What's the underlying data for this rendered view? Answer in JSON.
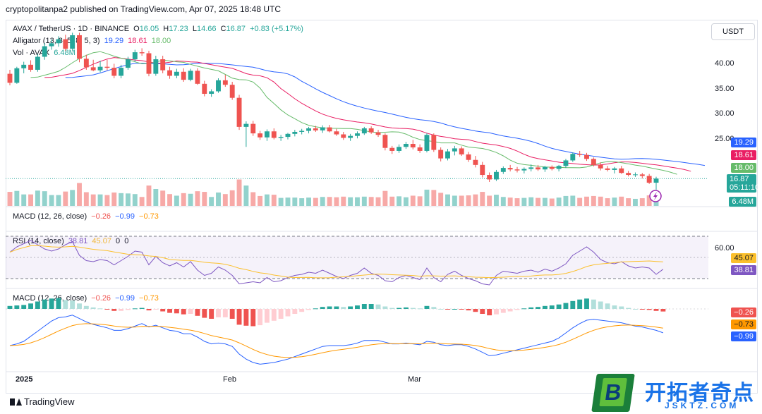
{
  "header": {
    "publisher": "cryptopolitanpa2 published on TradingView.com, Apr 07, 2025 18:48 UTC"
  },
  "currency_button": "USDT",
  "legend": {
    "symbol": "AVAX / TetherUS · 1D · BINANCE",
    "open_label": "O",
    "open": "16.05",
    "high_label": "H",
    "high": "17.23",
    "low_label": "L",
    "low": "14.66",
    "close_label": "C",
    "close": "16.87",
    "change": "+0.83 (+5.17%)",
    "alligator_label": "Alligator (13, 8, 5, 8, 5, 3)",
    "alligator_jaw": "19.29",
    "alligator_teeth": "18.61",
    "alligator_lips": "18.00",
    "volume_label": "Vol · AVAX",
    "volume_value": "6.48M",
    "macd1_label": "MACD (12, 26, close)",
    "macd1_hist": "−0.26",
    "macd1_macd": "−0.99",
    "macd1_signal": "−0.73",
    "rsi_label": "RSI (14, close)",
    "rsi_value": "38.81",
    "rsi_ma": "45.07",
    "rsi_extra1": "0",
    "rsi_extra2": "0",
    "macd2_label": "MACD (12, 26, close)",
    "macd2_hist": "−0.26",
    "macd2_macd": "−0.99",
    "macd2_signal": "−0.73"
  },
  "tags": {
    "jaw": "19.29",
    "teeth": "18.61",
    "lips": "18.00",
    "price": "16.87",
    "countdown": "05:11:10",
    "volume": "6.48M",
    "rsi_ma": "45.07",
    "rsi": "38.81",
    "macd_hist": "−0.26",
    "macd_signal": "−0.73",
    "macd": "−0.99"
  },
  "brand": "TradingView",
  "watermark": {
    "letter": "B",
    "cn": "开拓者奇点",
    "url": "JSKTZ.COM"
  },
  "colors": {
    "up": "#26a69a",
    "down": "#ef5350",
    "jaw": "#2962ff",
    "teeth": "#e91e63",
    "lips": "#66bb6a",
    "rsi": "#7e57c2",
    "rsi_ma": "#fbc02d",
    "macd": "#2962ff",
    "signal": "#ff9800"
  },
  "chart_data": [
    {
      "type": "candlestick",
      "title": "AVAX / TetherUS · 1D · BINANCE",
      "x_tick_labels": [
        "2025",
        "Feb",
        "Mar"
      ],
      "y_tick_labels": [
        "40.00",
        "35.00",
        "30.00",
        "25.00"
      ],
      "ylim": [
        14,
        47
      ],
      "candles": [
        [
          37.8,
          38.6,
          35.5,
          36.0
        ],
        [
          36.0,
          39.2,
          35.8,
          38.9
        ],
        [
          38.9,
          40.2,
          37.9,
          39.6
        ],
        [
          39.6,
          40.5,
          38.2,
          38.6
        ],
        [
          38.6,
          41.7,
          38.2,
          41.2
        ],
        [
          41.2,
          43.9,
          40.6,
          43.3
        ],
        [
          43.3,
          44.7,
          42.6,
          43.9
        ],
        [
          43.9,
          45.3,
          43.2,
          44.7
        ],
        [
          44.7,
          45.6,
          42.4,
          42.8
        ],
        [
          42.8,
          46.0,
          42.3,
          45.5
        ],
        [
          45.5,
          46.0,
          40.1,
          40.8
        ],
        [
          40.8,
          41.6,
          38.6,
          39.1
        ],
        [
          39.1,
          40.6,
          38.3,
          38.5
        ],
        [
          38.5,
          40.4,
          38.1,
          39.2
        ],
        [
          39.2,
          40.6,
          38.5,
          39.0
        ],
        [
          39.0,
          39.8,
          36.9,
          37.4
        ],
        [
          37.4,
          39.6,
          36.9,
          39.0
        ],
        [
          39.0,
          41.2,
          38.6,
          40.7
        ],
        [
          40.7,
          42.6,
          40.2,
          42.1
        ],
        [
          42.1,
          42.9,
          41.4,
          41.9
        ],
        [
          41.9,
          42.4,
          37.3,
          37.8
        ],
        [
          37.8,
          41.4,
          37.4,
          40.7
        ],
        [
          40.7,
          41.4,
          37.9,
          38.5
        ],
        [
          38.5,
          39.2,
          36.8,
          37.4
        ],
        [
          37.4,
          38.8,
          36.9,
          38.2
        ],
        [
          38.2,
          38.9,
          36.2,
          36.6
        ],
        [
          36.6,
          38.8,
          36.3,
          38.4
        ],
        [
          38.4,
          38.9,
          35.6,
          35.8
        ],
        [
          35.8,
          36.4,
          33.3,
          33.8
        ],
        [
          33.8,
          34.7,
          33.2,
          34.3
        ],
        [
          34.3,
          36.9,
          34.0,
          36.5
        ],
        [
          36.5,
          37.6,
          35.2,
          35.6
        ],
        [
          35.6,
          36.2,
          32.6,
          33.0
        ],
        [
          33.0,
          33.6,
          26.6,
          27.2
        ],
        [
          27.2,
          28.3,
          23.2,
          27.8
        ],
        [
          27.8,
          28.4,
          25.4,
          25.9
        ],
        [
          25.9,
          26.4,
          24.6,
          25.1
        ],
        [
          25.1,
          26.7,
          24.4,
          26.3
        ],
        [
          26.3,
          26.9,
          24.7,
          25.0
        ],
        [
          25.0,
          25.6,
          24.4,
          25.2
        ],
        [
          25.2,
          26.0,
          24.7,
          25.8
        ],
        [
          25.8,
          26.6,
          25.3,
          26.2
        ],
        [
          26.2,
          26.8,
          25.7,
          26.4
        ],
        [
          26.4,
          27.2,
          25.9,
          26.9
        ],
        [
          26.9,
          27.4,
          26.2,
          26.5
        ],
        [
          26.5,
          27.5,
          26.0,
          27.1
        ],
        [
          27.1,
          27.6,
          26.1,
          26.3
        ],
        [
          26.3,
          26.8,
          25.4,
          25.7
        ],
        [
          25.7,
          26.2,
          24.6,
          25.0
        ],
        [
          25.0,
          25.8,
          24.4,
          25.4
        ],
        [
          25.4,
          26.3,
          24.9,
          25.9
        ],
        [
          25.9,
          27.2,
          25.6,
          26.9
        ],
        [
          26.9,
          27.3,
          25.8,
          26.1
        ],
        [
          26.1,
          26.6,
          25.2,
          25.6
        ],
        [
          25.6,
          25.9,
          22.5,
          23.0
        ],
        [
          23.0,
          23.4,
          21.8,
          22.4
        ],
        [
          22.4,
          23.7,
          22.0,
          23.2
        ],
        [
          23.2,
          24.2,
          22.8,
          23.8
        ],
        [
          23.8,
          24.6,
          22.7,
          23.1
        ],
        [
          23.1,
          23.7,
          22.0,
          22.4
        ],
        [
          22.4,
          25.9,
          22.1,
          25.6
        ],
        [
          25.6,
          25.9,
          22.2,
          22.6
        ],
        [
          22.6,
          23.1,
          20.3,
          20.9
        ],
        [
          20.9,
          22.8,
          20.5,
          22.3
        ],
        [
          22.3,
          23.4,
          21.5,
          22.9
        ],
        [
          22.9,
          23.3,
          21.4,
          21.7
        ],
        [
          21.7,
          22.2,
          20.2,
          20.6
        ],
        [
          20.6,
          21.4,
          19.1,
          19.6
        ],
        [
          19.6,
          20.2,
          17.1,
          17.6
        ],
        [
          17.6,
          18.1,
          16.2,
          16.7
        ],
        [
          16.7,
          18.6,
          16.4,
          18.2
        ],
        [
          18.2,
          19.3,
          17.8,
          19.0
        ],
        [
          19.0,
          19.6,
          18.3,
          18.7
        ],
        [
          18.7,
          19.2,
          18.1,
          18.5
        ],
        [
          18.5,
          19.1,
          17.9,
          18.8
        ],
        [
          18.8,
          19.7,
          18.3,
          19.1
        ],
        [
          19.1,
          19.6,
          18.4,
          18.7
        ],
        [
          18.7,
          19.4,
          18.2,
          19.2
        ],
        [
          19.2,
          19.5,
          18.5,
          18.8
        ],
        [
          18.8,
          19.6,
          18.3,
          19.4
        ],
        [
          19.4,
          20.8,
          19.0,
          20.5
        ],
        [
          20.5,
          22.1,
          20.2,
          21.8
        ],
        [
          21.8,
          22.4,
          21.2,
          21.6
        ],
        [
          21.6,
          22.0,
          20.4,
          20.8
        ],
        [
          20.8,
          21.1,
          19.3,
          19.6
        ],
        [
          19.6,
          20.1,
          18.5,
          18.9
        ],
        [
          18.9,
          19.4,
          18.3,
          18.6
        ],
        [
          18.6,
          19.2,
          17.9,
          18.9
        ],
        [
          18.9,
          19.4,
          17.8,
          18.0
        ],
        [
          18.0,
          18.4,
          17.3,
          17.6
        ],
        [
          17.6,
          18.1,
          17.2,
          17.7
        ],
        [
          17.7,
          18.0,
          16.9,
          17.4
        ],
        [
          17.4,
          17.8,
          15.8,
          16.05
        ],
        [
          16.05,
          17.23,
          14.66,
          16.87
        ]
      ],
      "alligator": {
        "jaw": "19.29",
        "teeth": "18.61",
        "lips": "18.00"
      },
      "last_price": 16.87
    },
    {
      "type": "bar",
      "title": "Vol · AVAX",
      "last_value": "6.48M"
    },
    {
      "type": "line",
      "title": "RSI (14, close)",
      "y_tick_labels": [
        "60.00"
      ],
      "ylim": [
        20,
        80
      ],
      "bands": [
        30,
        70
      ],
      "rsi": [
        55,
        60,
        63,
        66,
        62,
        58,
        56,
        58,
        62,
        65,
        52,
        47,
        46,
        48,
        47,
        43,
        47,
        51,
        56,
        55,
        43,
        51,
        45,
        42,
        45,
        41,
        46,
        38,
        33,
        35,
        41,
        38,
        33,
        25,
        26,
        27,
        26,
        31,
        27,
        28,
        31,
        33,
        34,
        36,
        35,
        38,
        35,
        32,
        30,
        33,
        35,
        40,
        35,
        33,
        28,
        27,
        31,
        33,
        31,
        29,
        40,
        31,
        27,
        34,
        37,
        33,
        30,
        28,
        25,
        24,
        33,
        37,
        36,
        35,
        37,
        38,
        36,
        39,
        37,
        40,
        44,
        52,
        56,
        60,
        55,
        48,
        45,
        44,
        46,
        42,
        40,
        41,
        40,
        34,
        38.81
      ],
      "rsi_ma_last": 45.07
    },
    {
      "type": "bar",
      "title": "MACD (12, 26, close)",
      "hist": [
        0.3,
        0.35,
        0.4,
        0.55,
        0.75,
        0.95,
        1.05,
        1.1,
        0.9,
        0.85,
        0.55,
        0.3,
        0.15,
        0.05,
        -0.05,
        -0.2,
        -0.2,
        -0.1,
        0.05,
        0.1,
        -0.15,
        -0.05,
        -0.25,
        -0.4,
        -0.45,
        -0.55,
        -0.5,
        -0.7,
        -0.9,
        -1.0,
        -0.85,
        -0.85,
        -1.0,
        -1.6,
        -1.7,
        -1.75,
        -1.65,
        -1.4,
        -1.2,
        -1.0,
        -0.75,
        -0.5,
        -0.3,
        -0.1,
        0.05,
        0.2,
        0.25,
        0.25,
        0.2,
        0.25,
        0.35,
        0.5,
        0.5,
        0.45,
        0.25,
        0.1,
        0.1,
        0.15,
        0.1,
        0.05,
        0.3,
        0.2,
        0.0,
        -0.05,
        0.0,
        -0.05,
        -0.15,
        -0.3,
        -0.5,
        -0.65,
        -0.55,
        -0.4,
        -0.25,
        -0.1,
        0.05,
        0.15,
        0.2,
        0.3,
        0.35,
        0.45,
        0.6,
        0.8,
        0.95,
        1.05,
        0.95,
        0.75,
        0.55,
        0.35,
        0.25,
        0.1,
        0.0,
        -0.05,
        -0.1,
        -0.2,
        -0.26
      ],
      "macd": [
        -2.5,
        -2.3,
        -2.0,
        -1.4,
        -0.8,
        -0.2,
        0.4,
        0.8,
        0.9,
        1.1,
        0.7,
        0.3,
        0.0,
        -0.2,
        -0.4,
        -0.7,
        -0.7,
        -0.5,
        -0.2,
        0.1,
        -0.3,
        -0.1,
        -0.4,
        -0.7,
        -0.8,
        -1.1,
        -1.1,
        -1.5,
        -2.0,
        -2.3,
        -2.2,
        -2.3,
        -2.6,
        -3.5,
        -4.1,
        -4.5,
        -4.7,
        -4.6,
        -4.5,
        -4.3,
        -4.1,
        -3.8,
        -3.5,
        -3.2,
        -2.9,
        -2.6,
        -2.5,
        -2.5,
        -2.5,
        -2.4,
        -2.2,
        -1.9,
        -1.9,
        -1.9,
        -2.1,
        -2.3,
        -2.3,
        -2.2,
        -2.3,
        -2.4,
        -2.0,
        -2.1,
        -2.4,
        -2.5,
        -2.4,
        -2.4,
        -2.6,
        -2.9,
        -3.3,
        -3.7,
        -3.6,
        -3.4,
        -3.2,
        -3.0,
        -2.8,
        -2.6,
        -2.4,
        -2.2,
        -2.0,
        -1.6,
        -1.0,
        -0.4,
        0.1,
        0.5,
        0.6,
        0.5,
        0.4,
        0.3,
        0.2,
        0.0,
        -0.2,
        -0.3,
        -0.5,
        -0.7,
        -0.99
      ],
      "signal_last": -0.73,
      "macd_last": -0.99,
      "hist_last": -0.26
    }
  ]
}
